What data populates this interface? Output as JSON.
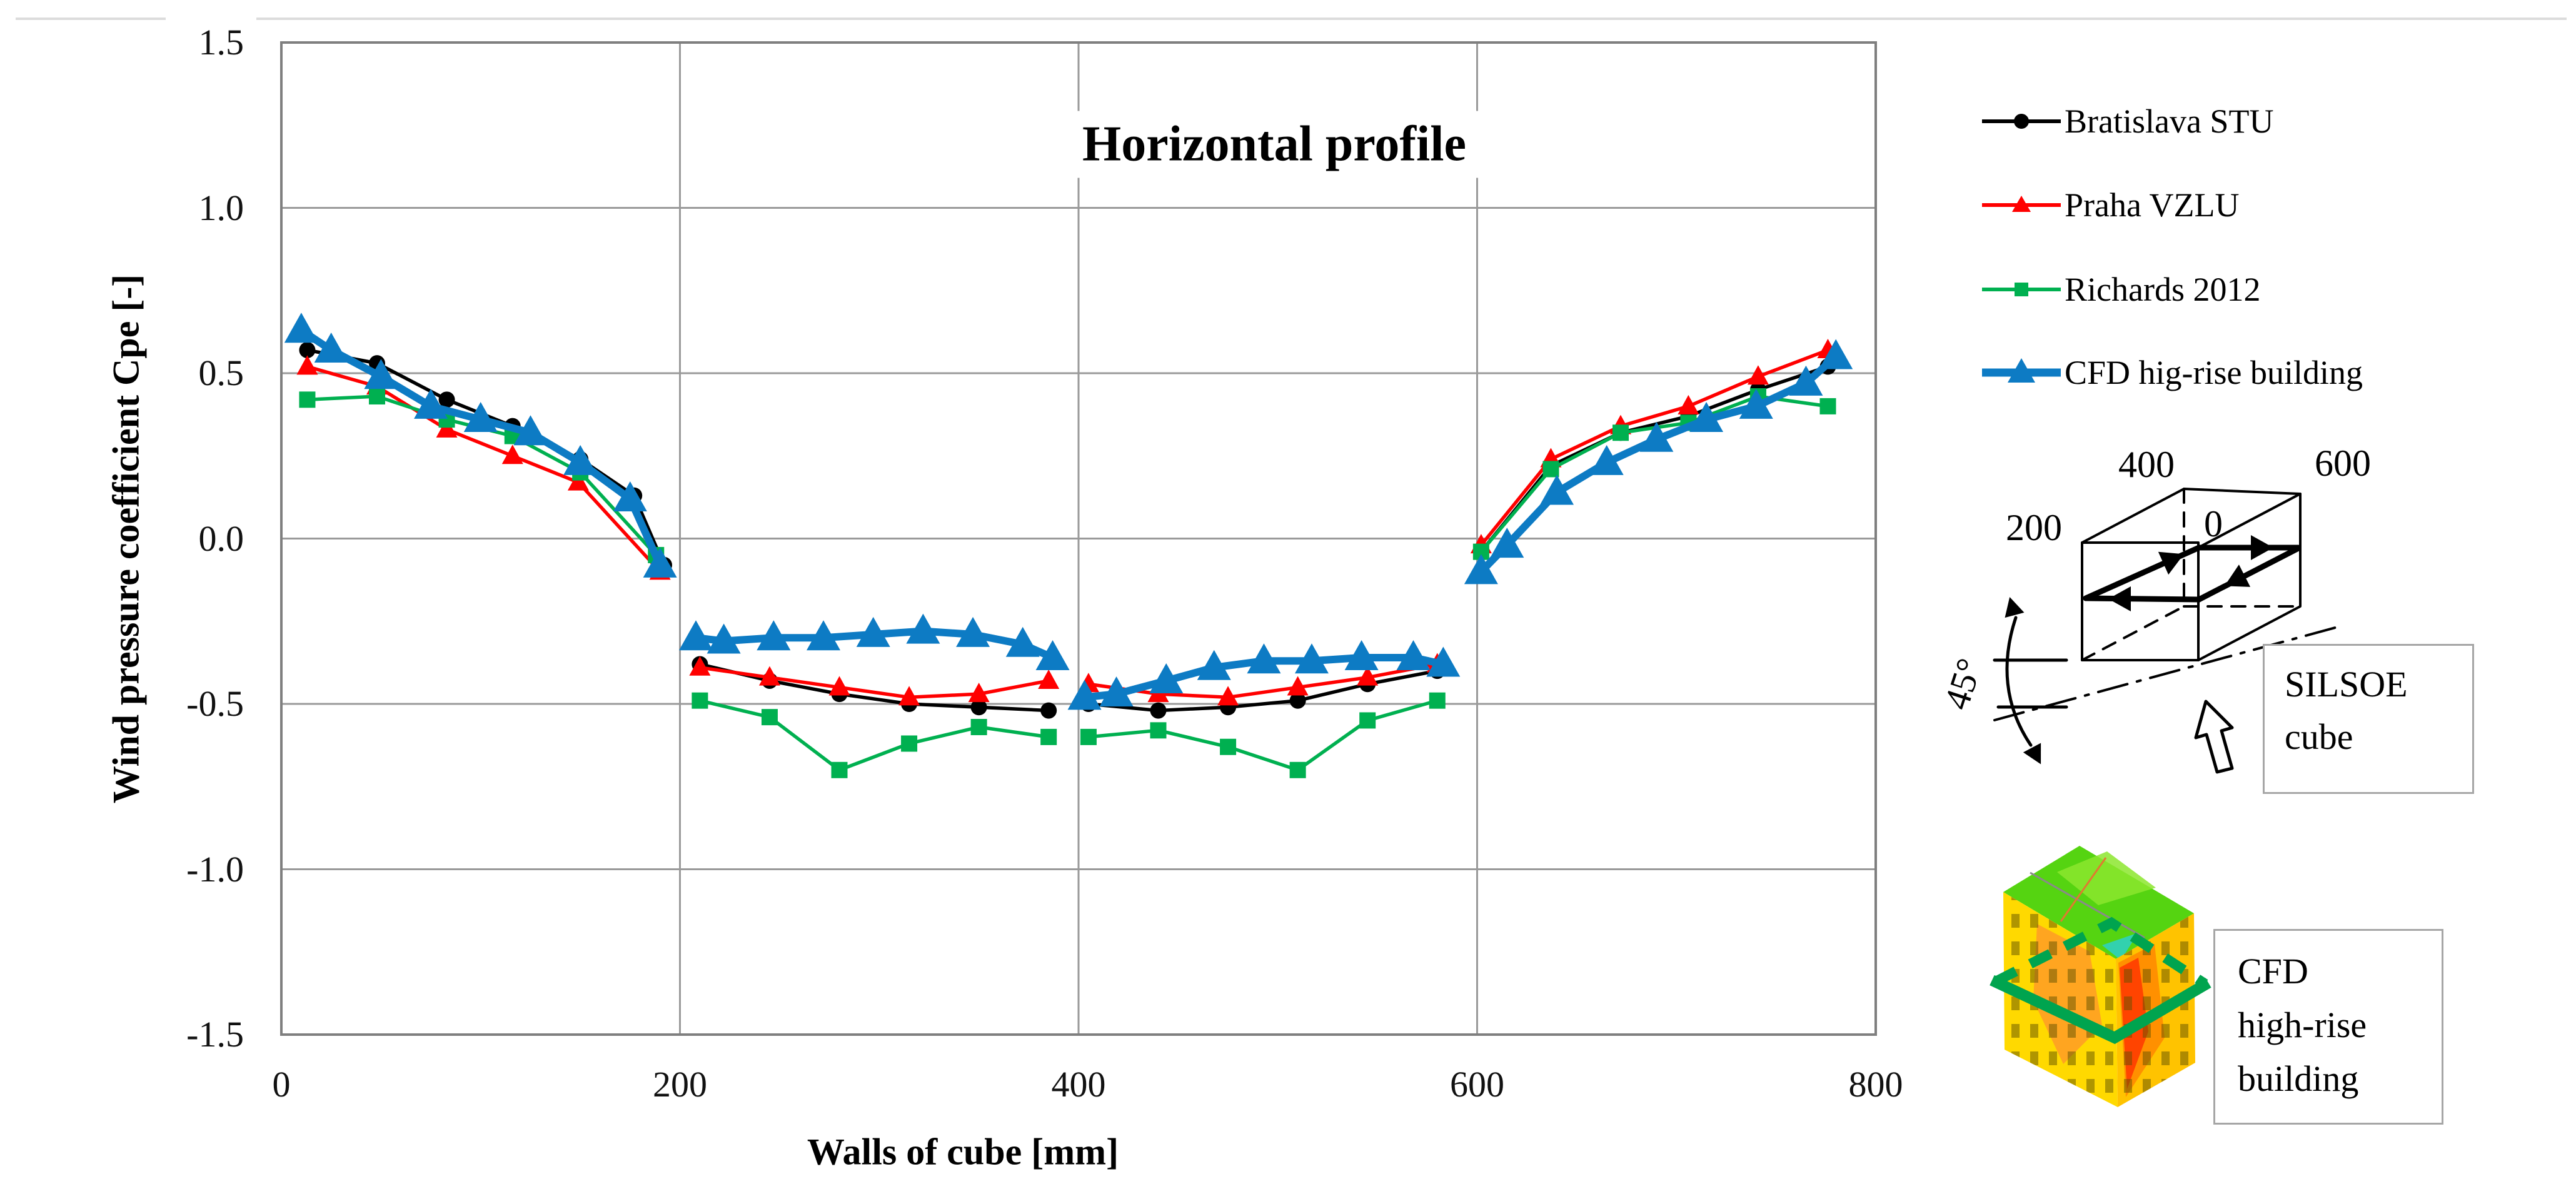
{
  "figure": {
    "title": "Horizontal profile"
  },
  "chart_data": {
    "type": "line",
    "title": "Horizontal profile",
    "xlabel": "Walls of cube [mm]",
    "ylabel": "Wind pressure coefficient Cpe [-]",
    "xlim": [
      0,
      800
    ],
    "ylim": [
      -1.5,
      1.5
    ],
    "xticks": [
      0,
      200,
      400,
      600,
      800
    ],
    "xtick_labels": [
      "0",
      "200",
      "400",
      "600",
      "800"
    ],
    "yticks": [
      1.5,
      1.0,
      0.5,
      0.0,
      -0.5,
      -1.0,
      -1.5
    ],
    "ytick_labels": [
      "1.5",
      "1.0",
      "0.5",
      "0.0",
      "-0.5",
      "-1.0",
      "-1.5"
    ],
    "grid": true,
    "legend_position": "right",
    "note": "x axis is the unwrapped perimeter of the cube walls; curves are drawn per wall segment (0-200, 200-400, 400-600, 600-800 mm) with gaps at the wall corners",
    "series": [
      {
        "name": "Bratislava STU",
        "color": "#000000",
        "marker": "circle",
        "thick": false,
        "walls": [
          {
            "x": [
              13,
              48,
              83,
              116,
              150,
              177,
              192
            ],
            "cpe": [
              0.57,
              0.53,
              0.42,
              0.34,
              0.24,
              0.13,
              -0.08
            ]
          },
          {
            "x": [
              210,
              245,
              280,
              315,
              350,
              385
            ],
            "cpe": [
              -0.38,
              -0.43,
              -0.47,
              -0.5,
              -0.51,
              -0.52
            ]
          },
          {
            "x": [
              405,
              440,
              475,
              510,
              545,
              580
            ],
            "cpe": [
              -0.5,
              -0.52,
              -0.51,
              -0.49,
              -0.44,
              -0.4
            ]
          },
          {
            "x": [
              602,
              637,
              672,
              706,
              741,
              776
            ],
            "cpe": [
              -0.04,
              0.22,
              0.32,
              0.37,
              0.45,
              0.52
            ]
          }
        ]
      },
      {
        "name": "Praha VZLU",
        "color": "#ff0000",
        "marker": "triangle",
        "thick": false,
        "walls": [
          {
            "x": [
              13,
              48,
              83,
              116,
              149,
              190
            ],
            "cpe": [
              0.52,
              0.46,
              0.33,
              0.25,
              0.17,
              -0.1
            ]
          },
          {
            "x": [
              210,
              245,
              280,
              315,
              350,
              385
            ],
            "cpe": [
              -0.39,
              -0.42,
              -0.45,
              -0.48,
              -0.47,
              -0.43
            ]
          },
          {
            "x": [
              405,
              440,
              475,
              510,
              545,
              580
            ],
            "cpe": [
              -0.44,
              -0.47,
              -0.48,
              -0.45,
              -0.42,
              -0.38
            ]
          },
          {
            "x": [
              602,
              637,
              672,
              706,
              741,
              776
            ],
            "cpe": [
              -0.02,
              0.24,
              0.34,
              0.4,
              0.49,
              0.57
            ]
          }
        ]
      },
      {
        "name": "Richards 2012",
        "color": "#00b050",
        "marker": "square",
        "thick": false,
        "walls": [
          {
            "x": [
              13,
              48,
              83,
              116,
              150,
              188
            ],
            "cpe": [
              0.42,
              0.43,
              0.36,
              0.31,
              0.2,
              -0.05
            ]
          },
          {
            "x": [
              210,
              245,
              280,
              315,
              350,
              385
            ],
            "cpe": [
              -0.49,
              -0.54,
              -0.7,
              -0.62,
              -0.57,
              -0.6
            ]
          },
          {
            "x": [
              405,
              440,
              475,
              510,
              545,
              580
            ],
            "cpe": [
              -0.6,
              -0.58,
              -0.63,
              -0.7,
              -0.55,
              -0.49
            ]
          },
          {
            "x": [
              602,
              637,
              672,
              706,
              741,
              776
            ],
            "cpe": [
              -0.04,
              0.21,
              0.32,
              0.35,
              0.43,
              0.4
            ]
          }
        ]
      },
      {
        "name": "CFD hig-rise building",
        "color": "#0d7bc4",
        "marker": "triangle",
        "thick": true,
        "walls": [
          {
            "x": [
              10,
              25,
              50,
              75,
              100,
              125,
              150,
              175,
              190
            ],
            "cpe": [
              0.63,
              0.57,
              0.49,
              0.4,
              0.36,
              0.32,
              0.23,
              0.12,
              -0.08
            ]
          },
          {
            "x": [
              208,
              222,
              247,
              272,
              297,
              322,
              347,
              372,
              387
            ],
            "cpe": [
              -0.3,
              -0.31,
              -0.3,
              -0.3,
              -0.29,
              -0.28,
              -0.29,
              -0.32,
              -0.36
            ]
          },
          {
            "x": [
              403,
              419,
              444,
              468,
              493,
              517,
              542,
              568,
              583
            ],
            "cpe": [
              -0.48,
              -0.47,
              -0.43,
              -0.39,
              -0.37,
              -0.37,
              -0.36,
              -0.36,
              -0.38
            ]
          },
          {
            "x": [
              602,
              615,
              640,
              665,
              690,
              715,
              740,
              765,
              780
            ],
            "cpe": [
              -0.1,
              -0.02,
              0.14,
              0.23,
              0.3,
              0.36,
              0.4,
              0.47,
              0.55
            ]
          }
        ]
      }
    ]
  },
  "legend": {
    "items": [
      {
        "label": "Bratislava STU",
        "color": "#000000",
        "marker": "circle",
        "thick": false
      },
      {
        "label": "Praha VZLU",
        "color": "#ff0000",
        "marker": "triangle",
        "thick": false
      },
      {
        "label": "Richards 2012",
        "color": "#00b050",
        "marker": "square",
        "thick": false
      },
      {
        "label": "CFD hig-rise building",
        "color": "#0d7bc4",
        "marker": "triangle",
        "thick": true
      }
    ]
  },
  "silsoe_diagram": {
    "labels": {
      "dim_400": "400",
      "dim_600": "600",
      "dim_200": "200",
      "zero": "0",
      "angle": "45°",
      "box_line1": "SILSOE",
      "box_line2": "cube"
    }
  },
  "cfd_thumbnail": {
    "caption_line1": "CFD",
    "caption_line2": "high-rise",
    "caption_line3": "building",
    "colors": {
      "roof_green": "#55d411",
      "wall_yellow": "#ffd900",
      "hot_orange": "#ff9b26",
      "hot_red": "#ff3c00",
      "section_band_green": "#00a44f"
    }
  },
  "colors": {
    "grid": "#9a9a9a",
    "plot_border": "#7f7f7f",
    "top_rule": "#dcdcdc"
  }
}
